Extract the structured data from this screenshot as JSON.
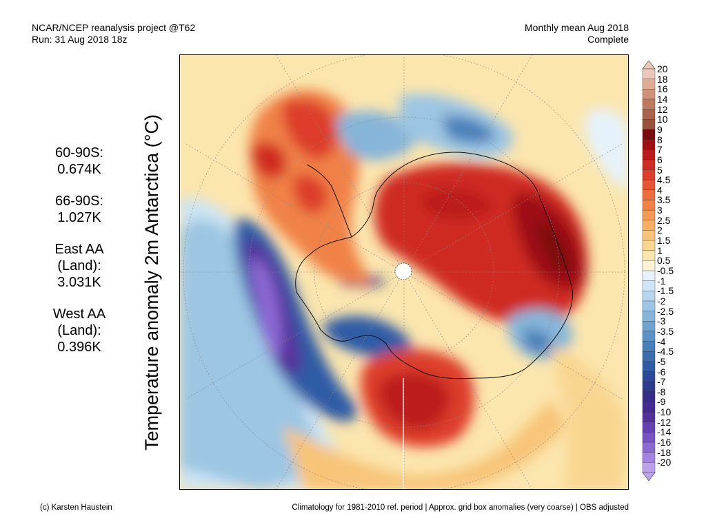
{
  "header": {
    "line1_left": "NCAR/NCEP reanalysis project @T62",
    "line2_left": "Run: 31 Aug 2018 18z",
    "line1_right": "Monthly mean Aug 2018",
    "line2_right": "Complete"
  },
  "axis_label": "Temperature anomaly 2m Antarctica (°C)",
  "stats": [
    {
      "label": "60-90S:",
      "value": "0.674K"
    },
    {
      "label": "66-90S:",
      "value": "1.027K"
    },
    {
      "label": "East AA (Land):",
      "value": "3.031K"
    },
    {
      "label": "West AA (Land):",
      "value": "0.396K"
    }
  ],
  "colorbar": {
    "labels": [
      "20",
      "18",
      "16",
      "14",
      "12",
      "10",
      "9",
      "8",
      "7",
      "6",
      "5",
      "4.5",
      "4",
      "3.5",
      "3",
      "2.5",
      "2",
      "1.5",
      "1",
      "0.5",
      "-0.5",
      "-1",
      "-1.5",
      "-2",
      "-2.5",
      "-3",
      "-3.5",
      "-4",
      "-4.5",
      "-5",
      "-6",
      "-7",
      "-8",
      "-9",
      "-10",
      "-12",
      "-14",
      "-16",
      "-18",
      "-20"
    ],
    "colors": [
      "#edc8b8",
      "#dfad96",
      "#cf9377",
      "#bf7a5e",
      "#a96449",
      "#98513a",
      "#7a0a0c",
      "#9e0f12",
      "#bc1b1c",
      "#cf2a24",
      "#dd3d2c",
      "#e65634",
      "#ec6c3d",
      "#f08246",
      "#f49a55",
      "#f6b064",
      "#f8c478",
      "#f9d690",
      "#fbe6ae",
      "#fdf3d2",
      "#e6f2fb",
      "#cde5f4",
      "#b5d6ec",
      "#9cc6e3",
      "#86b5d9",
      "#70a4cf",
      "#5c92c5",
      "#4a80ba",
      "#3b6db0",
      "#2f5ca5",
      "#2a4a99",
      "#2c3b8d",
      "#372c86",
      "#452a8f",
      "#54309c",
      "#663fb0",
      "#7852c4",
      "#8c68d3",
      "#a283df",
      "#bba2ea"
    ]
  },
  "footer": {
    "left": "(c) Karsten Haustein",
    "right": "Climatology for 1981-2010 ref. period | Approx. grid box anomalies (very coarse) | OBS adjusted"
  }
}
